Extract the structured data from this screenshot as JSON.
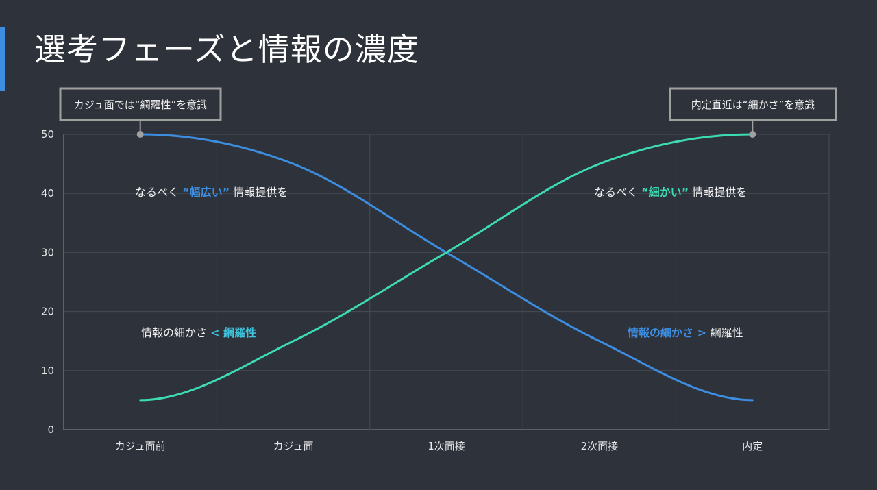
{
  "title": "選考フェーズと情報の濃度",
  "colors": {
    "background": "#2e323b",
    "blue": "#3d8ee0",
    "green": "#3ddbb4",
    "cyan": "#3fc3dc",
    "grid": "#474c56",
    "callout": "#a0a0a0"
  },
  "chart_data": {
    "type": "line",
    "categories": [
      "カジュ面前",
      "カジュ面",
      "1次面接",
      "2次面接",
      "内定"
    ],
    "series": [
      {
        "name": "網羅性",
        "color": "#3d8ee0",
        "values": [
          50,
          45,
          30,
          15,
          5
        ]
      },
      {
        "name": "細かさ",
        "color": "#3ddbb4",
        "values": [
          5,
          15,
          30,
          45,
          50
        ]
      }
    ],
    "ylim": [
      0,
      50
    ],
    "yticks": [
      0,
      10,
      20,
      30,
      40,
      50
    ],
    "grid": true,
    "callouts": [
      {
        "text": "カジュ面では“網羅性”を意識",
        "category": 0,
        "value": 50
      },
      {
        "text": "内定直近は“細かさ”を意識",
        "category": 4,
        "value": 50
      }
    ],
    "annotations": {
      "top_left": {
        "pre": "なるべく ",
        "em": "“幅広い”",
        "post": " 情報提供を"
      },
      "top_right": {
        "pre": "なるべく ",
        "em": "“細かい”",
        "post": " 情報提供を"
      },
      "bottom_left": {
        "pre": "情報の細かさ ",
        "em": "< 網羅性"
      },
      "bottom_right": {
        "em": "情報の細かさ",
        "op": " > ",
        "post": "網羅性"
      }
    }
  }
}
